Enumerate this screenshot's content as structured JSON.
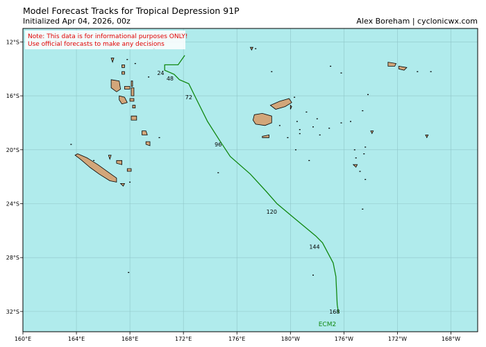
{
  "header": {
    "title": "Model Forecast Tracks  for Tropical Depression 91P",
    "initialized": "Initialized Apr 04, 2026, 00z",
    "credit": "Alex Boreham | cyclonicwx.com"
  },
  "disclaimer": {
    "line1": "Note: This data is for informational purposes ONLY!",
    "line2": "Use official forecasts to make any decisions"
  },
  "colors": {
    "ocean": "#b0ebec",
    "land": "#d2a67a",
    "track": "#118811",
    "grid": "#8fc6c8",
    "note_text": "#e00000"
  },
  "map_data": {
    "lon_range": [
      160,
      194
    ],
    "lat_range": [
      -33.5,
      -11
    ],
    "x_ticks": [
      {
        "lon": 160,
        "label": "160°E"
      },
      {
        "lon": 164,
        "label": "164°E"
      },
      {
        "lon": 168,
        "label": "168°E"
      },
      {
        "lon": 172,
        "label": "172°E"
      },
      {
        "lon": 176,
        "label": "176°E"
      },
      {
        "lon": 180,
        "label": "180°W"
      },
      {
        "lon": 184,
        "label": "176°W"
      },
      {
        "lon": 188,
        "label": "172°W"
      },
      {
        "lon": 192,
        "label": "168°W"
      }
    ],
    "y_ticks": [
      {
        "lat": -12,
        "label": "12°S"
      },
      {
        "lat": -16,
        "label": "16°S"
      },
      {
        "lat": -20,
        "label": "20°S"
      },
      {
        "lat": -24,
        "label": "24°S"
      },
      {
        "lat": -28,
        "label": "28°S"
      },
      {
        "lat": -32,
        "label": "32°S"
      }
    ],
    "model": {
      "name": "ECM2",
      "track": [
        {
          "lon": 172.1,
          "lat": -13.0
        },
        {
          "lon": 171.6,
          "lat": -13.7
        },
        {
          "lon": 170.6,
          "lat": -13.7
        },
        {
          "lon": 170.6,
          "lat": -14.1
        },
        {
          "lon": 171.3,
          "lat": -14.4
        },
        {
          "lon": 171.7,
          "lat": -14.8
        },
        {
          "lon": 172.4,
          "lat": -15.1
        },
        {
          "lon": 172.9,
          "lat": -16.1
        },
        {
          "lon": 173.8,
          "lat": -17.9
        },
        {
          "lon": 174.7,
          "lat": -19.3
        },
        {
          "lon": 175.5,
          "lat": -20.5
        },
        {
          "lon": 177.0,
          "lat": -21.8
        },
        {
          "lon": 178.2,
          "lat": -23.1
        },
        {
          "lon": 179.0,
          "lat": -24.0
        },
        {
          "lon": 180.2,
          "lat": -25.0
        },
        {
          "lon": 181.9,
          "lat": -26.4
        },
        {
          "lon": 182.4,
          "lat": -26.9
        },
        {
          "lon": 183.2,
          "lat": -28.4
        },
        {
          "lon": 183.4,
          "lat": -29.4
        },
        {
          "lon": 183.5,
          "lat": -31.5
        },
        {
          "lon": 183.6,
          "lat": -32.1
        }
      ],
      "hour_labels": [
        {
          "hour": "24",
          "lon": 170.3,
          "lat": -14.3
        },
        {
          "hour": "48",
          "lon": 171.0,
          "lat": -14.7
        },
        {
          "hour": "72",
          "lon": 172.4,
          "lat": -16.1
        },
        {
          "hour": "96",
          "lon": 174.6,
          "lat": -19.6
        },
        {
          "hour": "120",
          "lon": 178.6,
          "lat": -24.6
        },
        {
          "hour": "144",
          "lon": 181.8,
          "lat": -27.2
        },
        {
          "hour": "168",
          "lon": 183.3,
          "lat": -32.0
        }
      ],
      "name_position": {
        "lon": 182.1,
        "lat": -33.1
      }
    },
    "islands": [
      {
        "name": "new-caledonia",
        "coords": [
          [
            164.1,
            -20.3
          ],
          [
            164.8,
            -20.6
          ],
          [
            165.6,
            -21.1
          ],
          [
            166.3,
            -21.6
          ],
          [
            167.0,
            -22.1
          ],
          [
            167.0,
            -22.4
          ],
          [
            166.5,
            -22.3
          ],
          [
            165.7,
            -21.8
          ],
          [
            165.0,
            -21.3
          ],
          [
            164.3,
            -20.7
          ],
          [
            163.9,
            -20.4
          ]
        ]
      },
      {
        "name": "espiritu-santo",
        "coords": [
          [
            166.6,
            -14.8
          ],
          [
            167.2,
            -14.9
          ],
          [
            167.3,
            -15.5
          ],
          [
            167.0,
            -15.7
          ],
          [
            166.6,
            -15.4
          ]
        ]
      },
      {
        "name": "malakula",
        "coords": [
          [
            167.2,
            -16.0
          ],
          [
            167.6,
            -16.1
          ],
          [
            167.8,
            -16.5
          ],
          [
            167.4,
            -16.6
          ],
          [
            167.2,
            -16.3
          ]
        ]
      },
      {
        "name": "efate",
        "coords": [
          [
            168.1,
            -17.5
          ],
          [
            168.5,
            -17.5
          ],
          [
            168.5,
            -17.8
          ],
          [
            168.1,
            -17.8
          ]
        ]
      },
      {
        "name": "erromango",
        "coords": [
          [
            168.9,
            -18.6
          ],
          [
            169.2,
            -18.6
          ],
          [
            169.3,
            -18.9
          ],
          [
            168.9,
            -18.9
          ]
        ]
      },
      {
        "name": "tanna",
        "coords": [
          [
            169.2,
            -19.4
          ],
          [
            169.5,
            -19.4
          ],
          [
            169.5,
            -19.7
          ],
          [
            169.2,
            -19.6
          ]
        ]
      },
      {
        "name": "pentecost",
        "coords": [
          [
            168.1,
            -15.4
          ],
          [
            168.3,
            -15.4
          ],
          [
            168.3,
            -16.0
          ],
          [
            168.1,
            -16.0
          ]
        ]
      },
      {
        "name": "ambae",
        "coords": [
          [
            167.6,
            -15.3
          ],
          [
            168.0,
            -15.3
          ],
          [
            168.0,
            -15.5
          ],
          [
            167.6,
            -15.5
          ]
        ]
      },
      {
        "name": "maewo",
        "coords": [
          [
            168.1,
            -14.9
          ],
          [
            168.2,
            -14.9
          ],
          [
            168.2,
            -15.3
          ],
          [
            168.1,
            -15.3
          ]
        ]
      },
      {
        "name": "gaua",
        "coords": [
          [
            167.4,
            -14.2
          ],
          [
            167.6,
            -14.2
          ],
          [
            167.6,
            -14.4
          ],
          [
            167.4,
            -14.4
          ]
        ]
      },
      {
        "name": "vanua-lava",
        "coords": [
          [
            167.4,
            -13.7
          ],
          [
            167.6,
            -13.7
          ],
          [
            167.6,
            -13.9
          ],
          [
            167.4,
            -13.9
          ]
        ]
      },
      {
        "name": "torres",
        "coords": [
          [
            166.6,
            -13.2
          ],
          [
            166.8,
            -13.2
          ],
          [
            166.7,
            -13.5
          ]
        ]
      },
      {
        "name": "ambrym",
        "coords": [
          [
            168.0,
            -16.2
          ],
          [
            168.3,
            -16.2
          ],
          [
            168.3,
            -16.4
          ],
          [
            168.0,
            -16.4
          ]
        ]
      },
      {
        "name": "epi",
        "coords": [
          [
            168.2,
            -16.7
          ],
          [
            168.4,
            -16.7
          ],
          [
            168.4,
            -16.9
          ],
          [
            168.2,
            -16.9
          ]
        ]
      },
      {
        "name": "lifou",
        "coords": [
          [
            167.0,
            -20.8
          ],
          [
            167.4,
            -20.8
          ],
          [
            167.4,
            -21.1
          ],
          [
            167.0,
            -21.0
          ]
        ]
      },
      {
        "name": "mare",
        "coords": [
          [
            167.8,
            -21.4
          ],
          [
            168.1,
            -21.4
          ],
          [
            168.1,
            -21.6
          ],
          [
            167.8,
            -21.6
          ]
        ]
      },
      {
        "name": "ouvea",
        "coords": [
          [
            166.4,
            -20.4
          ],
          [
            166.6,
            -20.4
          ],
          [
            166.5,
            -20.7
          ]
        ]
      },
      {
        "name": "isle-of-pines",
        "coords": [
          [
            167.3,
            -22.5
          ],
          [
            167.6,
            -22.5
          ],
          [
            167.5,
            -22.7
          ]
        ]
      },
      {
        "name": "viti-levu",
        "coords": [
          [
            177.3,
            -17.4
          ],
          [
            177.9,
            -17.3
          ],
          [
            178.6,
            -17.5
          ],
          [
            178.6,
            -18.0
          ],
          [
            178.1,
            -18.2
          ],
          [
            177.4,
            -18.1
          ],
          [
            177.2,
            -17.8
          ]
        ]
      },
      {
        "name": "vanua-levu",
        "coords": [
          [
            178.5,
            -16.7
          ],
          [
            179.2,
            -16.4
          ],
          [
            179.9,
            -16.2
          ],
          [
            180.1,
            -16.5
          ],
          [
            179.6,
            -16.8
          ],
          [
            178.9,
            -17.0
          ]
        ]
      },
      {
        "name": "taveuni",
        "coords": [
          [
            180.0,
            -16.7
          ],
          [
            180.1,
            -16.8
          ],
          [
            180.0,
            -17.0
          ]
        ]
      },
      {
        "name": "kadavu",
        "coords": [
          [
            177.9,
            -19.0
          ],
          [
            178.4,
            -18.9
          ],
          [
            178.4,
            -19.1
          ],
          [
            177.9,
            -19.1
          ]
        ]
      },
      {
        "name": "upolu",
        "coords": [
          [
            188.1,
            -13.8
          ],
          [
            188.7,
            -13.9
          ],
          [
            188.5,
            -14.1
          ],
          [
            188.1,
            -14.0
          ]
        ]
      },
      {
        "name": "savaii",
        "coords": [
          [
            187.3,
            -13.5
          ],
          [
            187.9,
            -13.6
          ],
          [
            187.8,
            -13.8
          ],
          [
            187.3,
            -13.8
          ]
        ]
      },
      {
        "name": "tongatapu",
        "coords": [
          [
            184.7,
            -21.1
          ],
          [
            185.0,
            -21.1
          ],
          [
            184.9,
            -21.3
          ]
        ]
      },
      {
        "name": "vavau",
        "coords": [
          [
            186.0,
            -18.6
          ],
          [
            186.2,
            -18.6
          ],
          [
            186.1,
            -18.8
          ]
        ]
      },
      {
        "name": "niue",
        "coords": [
          [
            190.1,
            -18.9
          ],
          [
            190.3,
            -18.9
          ],
          [
            190.2,
            -19.1
          ]
        ]
      },
      {
        "name": "rotuma",
        "coords": [
          [
            177.0,
            -12.4
          ],
          [
            177.2,
            -12.4
          ],
          [
            177.1,
            -12.6
          ]
        ]
      }
    ],
    "islets": [
      [
        166.5,
        -12.3
      ],
      [
        167.8,
        -13.3
      ],
      [
        169.4,
        -14.6
      ],
      [
        169.8,
        -12.5
      ],
      [
        168.4,
        -13.6
      ],
      [
        170.2,
        -19.1
      ],
      [
        168.0,
        -22.4
      ],
      [
        165.3,
        -20.8
      ],
      [
        163.6,
        -19.6
      ],
      [
        174.6,
        -21.7
      ],
      [
        177.4,
        -12.5
      ],
      [
        178.6,
        -14.2
      ],
      [
        180.3,
        -16.1
      ],
      [
        180.5,
        -17.9
      ],
      [
        181.2,
        -17.2
      ],
      [
        181.7,
        -18.3
      ],
      [
        180.7,
        -18.5
      ],
      [
        182.0,
        -17.7
      ],
      [
        180.7,
        -18.8
      ],
      [
        179.2,
        -18.2
      ],
      [
        179.8,
        -19.1
      ],
      [
        185.8,
        -15.9
      ],
      [
        184.8,
        -20.0
      ],
      [
        185.6,
        -19.8
      ],
      [
        185.5,
        -20.3
      ],
      [
        185.2,
        -21.6
      ],
      [
        185.6,
        -22.2
      ],
      [
        185.4,
        -24.4
      ],
      [
        181.7,
        -29.3
      ],
      [
        167.9,
        -29.1
      ],
      [
        184.5,
        -17.9
      ],
      [
        184.9,
        -20.6
      ],
      [
        183.0,
        -13.8
      ],
      [
        183.8,
        -14.3
      ],
      [
        189.5,
        -14.2
      ],
      [
        190.5,
        -14.2
      ],
      [
        182.9,
        -18.4
      ],
      [
        182.2,
        -18.9
      ],
      [
        183.8,
        -18.0
      ],
      [
        185.4,
        -17.1
      ],
      [
        180.4,
        -20.0
      ],
      [
        181.4,
        -20.8
      ]
    ]
  }
}
